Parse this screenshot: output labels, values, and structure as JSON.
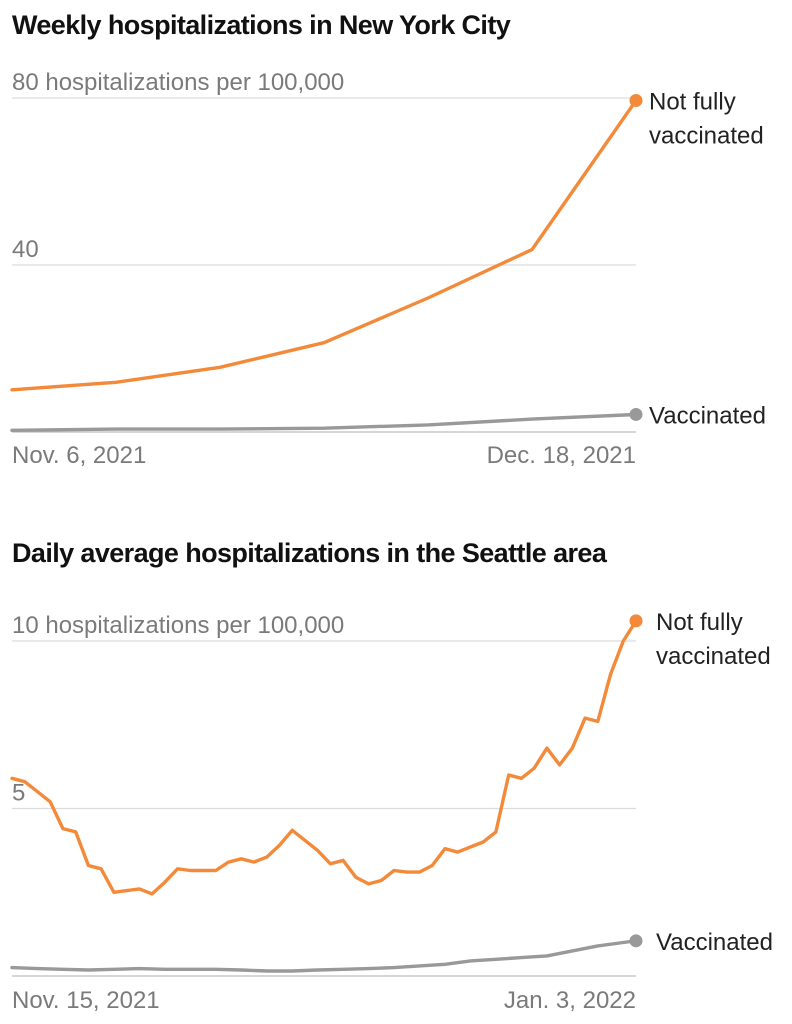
{
  "chart_data": [
    {
      "type": "line",
      "title": "Weekly hospitalizations in New York City",
      "ylabel": "",
      "ylim": [
        0,
        80
      ],
      "y_ticks": [
        {
          "value": 80,
          "label": "80 hospitalizations per 100,000"
        },
        {
          "value": 40,
          "label": "40"
        }
      ],
      "x_range": [
        "2021-11-06",
        "2021-12-18"
      ],
      "x_ticks": [
        {
          "x": "2021-11-06",
          "label": "Nov. 6, 2021"
        },
        {
          "x": "2021-12-18",
          "label": "Dec. 18, 2021"
        }
      ],
      "grid": true,
      "colors": {
        "not_vaccinated": "#f28a3a",
        "vaccinated": "#999999"
      },
      "series": [
        {
          "name": "Not fully vaccinated",
          "label_lines": [
            "Not fully",
            "vaccinated"
          ],
          "color": "#f28a3a",
          "x": [
            "2021-11-06",
            "2021-11-13",
            "2021-11-20",
            "2021-11-27",
            "2021-12-04",
            "2021-12-11",
            "2021-12-18"
          ],
          "values": [
            10.1,
            11.9,
            15.5,
            21.4,
            32.1,
            43.7,
            79.4
          ]
        },
        {
          "name": "Vaccinated",
          "label_lines": [
            "Vaccinated"
          ],
          "color": "#999999",
          "x": [
            "2021-11-06",
            "2021-11-13",
            "2021-11-20",
            "2021-11-27",
            "2021-12-04",
            "2021-12-11",
            "2021-12-18"
          ],
          "values": [
            0.4,
            0.7,
            0.7,
            0.9,
            1.7,
            3.1,
            4.2
          ]
        }
      ]
    },
    {
      "type": "line",
      "title": "Daily average hospitalizations in the Seattle area",
      "ylabel": "",
      "ylim": [
        0,
        10
      ],
      "y_ticks": [
        {
          "value": 10,
          "label": "10 hospitalizations per 100,000"
        },
        {
          "value": 5,
          "label": "5"
        }
      ],
      "x_range": [
        "2021-11-15",
        "2022-01-03"
      ],
      "x_ticks": [
        {
          "x": "2021-11-15",
          "label": "Nov. 15, 2021"
        },
        {
          "x": "2022-01-03",
          "label": "Jan. 3, 2022"
        }
      ],
      "grid": true,
      "colors": {
        "not_vaccinated": "#f28a3a",
        "vaccinated": "#999999"
      },
      "series": [
        {
          "name": "Not fully vaccinated",
          "label_lines": [
            "Not fully",
            "vaccinated"
          ],
          "color": "#f28a3a",
          "x": [
            "2021-11-15",
            "2021-11-16",
            "2021-11-17",
            "2021-11-18",
            "2021-11-19",
            "2021-11-20",
            "2021-11-21",
            "2021-11-22",
            "2021-11-23",
            "2021-11-24",
            "2021-11-25",
            "2021-11-26",
            "2021-11-27",
            "2021-11-28",
            "2021-11-29",
            "2021-11-30",
            "2021-12-01",
            "2021-12-02",
            "2021-12-03",
            "2021-12-04",
            "2021-12-05",
            "2021-12-06",
            "2021-12-07",
            "2021-12-08",
            "2021-12-09",
            "2021-12-10",
            "2021-12-11",
            "2021-12-12",
            "2021-12-13",
            "2021-12-14",
            "2021-12-15",
            "2021-12-16",
            "2021-12-17",
            "2021-12-18",
            "2021-12-19",
            "2021-12-20",
            "2021-12-21",
            "2021-12-22",
            "2021-12-23",
            "2021-12-24",
            "2021-12-25",
            "2021-12-26",
            "2021-12-27",
            "2021-12-28",
            "2021-12-29",
            "2021-12-30",
            "2021-12-31",
            "2022-01-01",
            "2022-01-02",
            "2022-01-03"
          ],
          "values": [
            5.9,
            5.8,
            5.5,
            5.2,
            4.4,
            4.3,
            3.3,
            3.2,
            2.5,
            2.55,
            2.6,
            2.45,
            2.8,
            3.2,
            3.15,
            3.15,
            3.15,
            3.4,
            3.5,
            3.4,
            3.55,
            3.9,
            4.35,
            4.05,
            3.75,
            3.35,
            3.45,
            2.95,
            2.75,
            2.85,
            3.15,
            3.1,
            3.1,
            3.3,
            3.8,
            3.7,
            3.85,
            4.0,
            4.3,
            6.0,
            5.9,
            6.2,
            6.8,
            6.3,
            6.8,
            7.7,
            7.6,
            9.0,
            10.0,
            10.6
          ]
        },
        {
          "name": "Vaccinated",
          "label_lines": [
            "Vaccinated"
          ],
          "color": "#999999",
          "x": [
            "2021-11-15",
            "2021-11-17",
            "2021-11-19",
            "2021-11-21",
            "2021-11-23",
            "2021-11-25",
            "2021-11-27",
            "2021-11-29",
            "2021-12-01",
            "2021-12-03",
            "2021-12-05",
            "2021-12-07",
            "2021-12-09",
            "2021-12-11",
            "2021-12-13",
            "2021-12-15",
            "2021-12-17",
            "2021-12-19",
            "2021-12-21",
            "2021-12-23",
            "2021-12-25",
            "2021-12-27",
            "2021-12-29",
            "2021-12-31",
            "2022-01-02",
            "2022-01-03"
          ],
          "values": [
            0.25,
            0.22,
            0.2,
            0.18,
            0.2,
            0.22,
            0.2,
            0.2,
            0.2,
            0.18,
            0.15,
            0.15,
            0.18,
            0.2,
            0.22,
            0.25,
            0.3,
            0.35,
            0.45,
            0.5,
            0.55,
            0.6,
            0.75,
            0.9,
            1.0,
            1.05
          ]
        }
      ]
    }
  ]
}
